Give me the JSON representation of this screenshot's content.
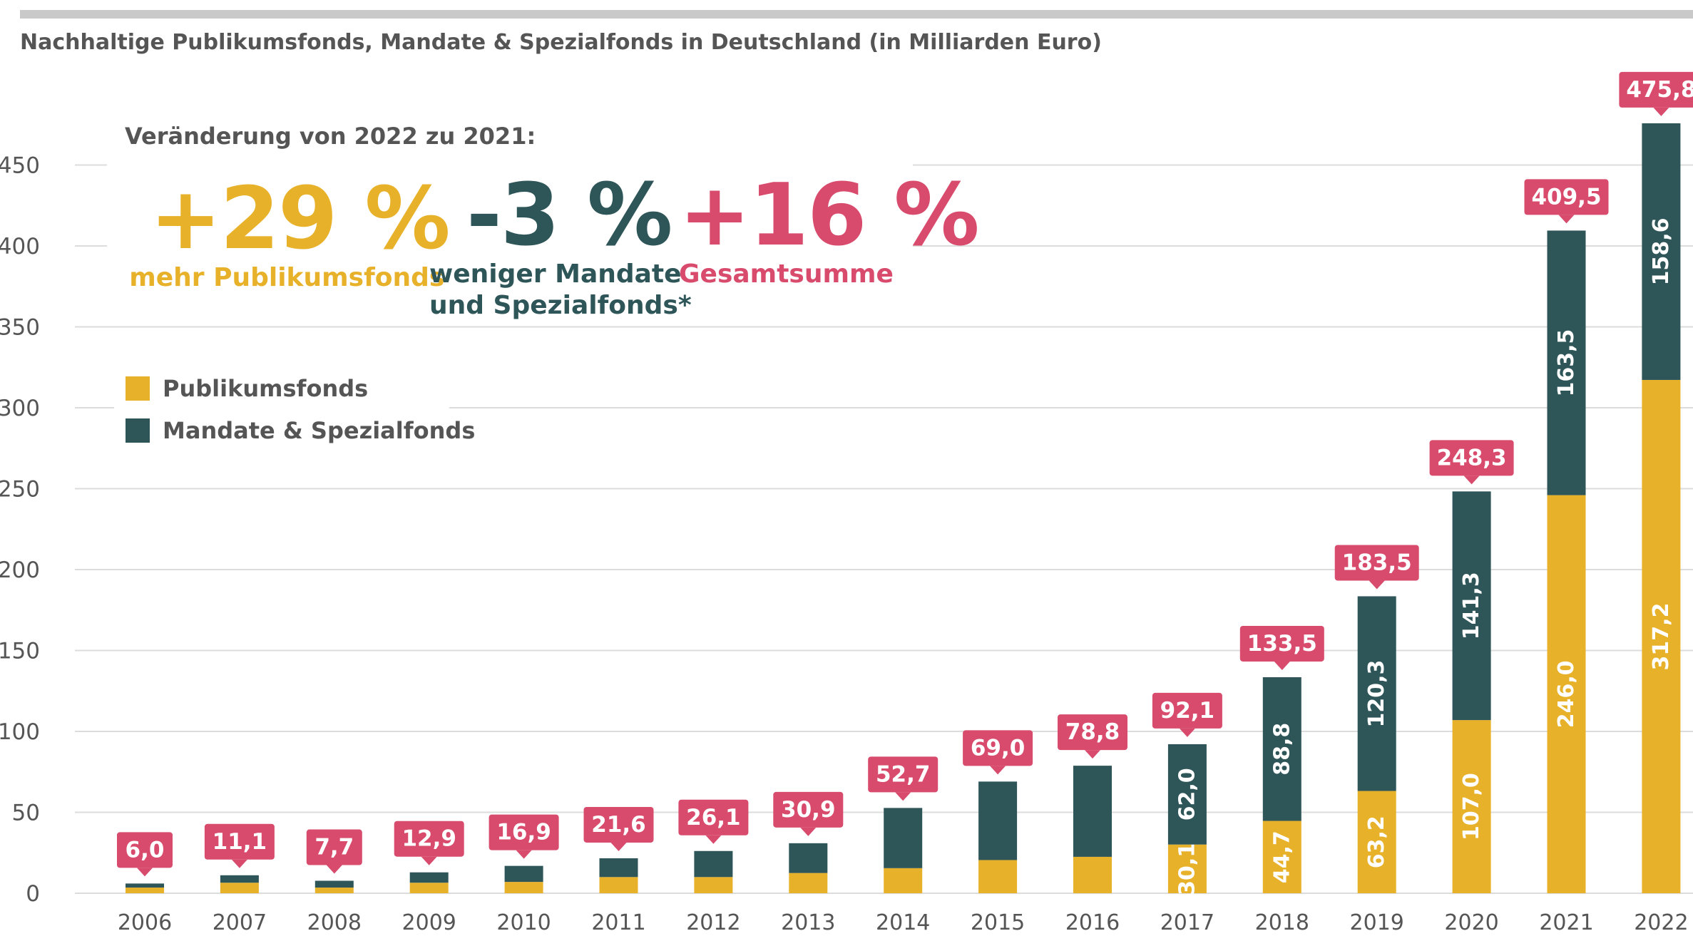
{
  "chart_data": {
    "type": "bar",
    "stacked": true,
    "title": "Nachhaltige Publikumsfonds, Mandate & Spezialfonds in Deutschland (in Milliarden Euro)",
    "categories": [
      "2006",
      "2007",
      "2008",
      "2009",
      "2010",
      "2011",
      "2012",
      "2013",
      "2014",
      "2015",
      "2016",
      "2017",
      "2018",
      "2019",
      "2020",
      "2021",
      "2022"
    ],
    "series": [
      {
        "name": "Publikumsfonds",
        "color": "#e8b12a",
        "values": [
          3.5,
          6.5,
          3.5,
          6.5,
          7.0,
          10.0,
          10.0,
          12.5,
          15.5,
          20.5,
          22.5,
          30.1,
          44.7,
          63.2,
          107.0,
          246.0,
          317.2
        ],
        "labels": [
          "",
          "",
          "",
          "",
          "",
          "",
          "",
          "",
          "",
          "",
          "",
          "30,1",
          "44,7",
          "63,2",
          "107,0",
          "246,0",
          "317,2"
        ]
      },
      {
        "name": "Mandate & Spezialfonds",
        "color": "#2e5558",
        "values": [
          2.5,
          4.6,
          4.2,
          6.4,
          9.9,
          11.6,
          16.1,
          18.4,
          37.2,
          48.5,
          56.3,
          62.0,
          88.8,
          120.3,
          141.3,
          163.5,
          158.6
        ],
        "labels": [
          "",
          "",
          "",
          "",
          "",
          "",
          "",
          "",
          "",
          "",
          "",
          "62,0",
          "88,8",
          "120,3",
          "141,3",
          "163,5",
          "158,6"
        ]
      }
    ],
    "totals": [
      "6,0",
      "11,1",
      "7,7",
      "12,9",
      "16,9",
      "21,6",
      "26,1",
      "30,9",
      "52,7",
      "69,0",
      "78,8",
      "92,1",
      "133,5",
      "183,5",
      "248,3",
      "409,5",
      "475,8"
    ],
    "yticks": [
      0,
      50,
      100,
      150,
      200,
      250,
      300,
      350,
      400,
      450
    ],
    "ylim": [
      0,
      475
    ],
    "grid": true,
    "legend_position": "top-left",
    "total_label_color": "#d84b6d"
  },
  "annotation": {
    "heading": "Veränderung von 2022 zu 2021:",
    "stats": [
      {
        "value": "+29 %",
        "caption_lines": [
          "mehr Publikumsfonds"
        ],
        "color": "#e8b12a"
      },
      {
        "value": "-3 %",
        "caption_lines": [
          "weniger Mandate",
          "und Spezialfonds*"
        ],
        "color": "#2e5558"
      },
      {
        "value": "+16 %",
        "caption_lines": [
          "Gesamtsumme"
        ],
        "color": "#d84b6d"
      }
    ]
  },
  "legend": {
    "items": [
      {
        "label": "Publikumsfonds",
        "color": "#e8b12a"
      },
      {
        "label": "Mandate & Spezialfonds",
        "color": "#2e5558"
      }
    ]
  }
}
